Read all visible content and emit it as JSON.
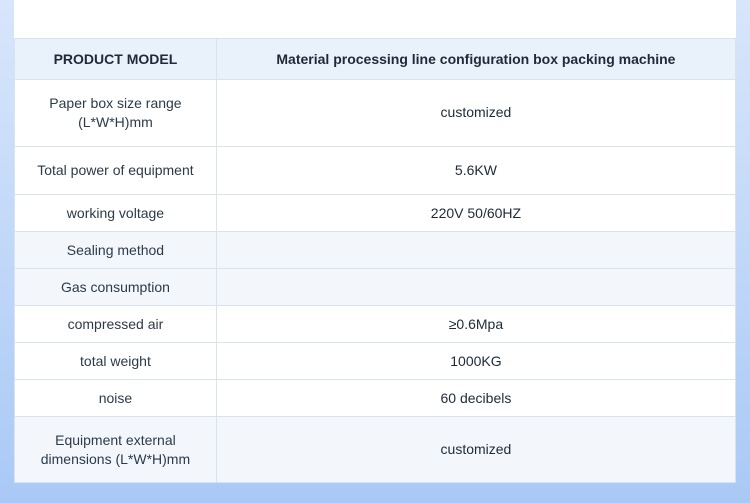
{
  "spec_table": {
    "type": "table",
    "header": {
      "label": "PRODUCT MODEL",
      "value": "Material processing line configuration box packing machine",
      "background_color": "#e9f1fb",
      "font_weight": 700,
      "fontsize": 14
    },
    "columns": [
      {
        "key": "label",
        "width_pct": 28,
        "align": "center"
      },
      {
        "key": "value",
        "width_pct": 72,
        "align": "center"
      }
    ],
    "rows": [
      {
        "label": "Paper box size range (L*W*H)mm",
        "value": "customized",
        "tall": true
      },
      {
        "label": "Total power of equipment",
        "value": "5.6KW",
        "tall": true
      },
      {
        "label": "working voltage",
        "value": "220V 50/60HZ"
      },
      {
        "label": "Sealing method",
        "value": "",
        "alt": true
      },
      {
        "label": "Gas consumption",
        "value": "",
        "alt": true
      },
      {
        "label": "compressed air",
        "value": "≥0.6Mpa"
      },
      {
        "label": "total weight",
        "value": "1000KG"
      },
      {
        "label": "noise",
        "value": "60 decibels"
      },
      {
        "label": "Equipment external dimensions (L*W*H)mm",
        "value": "customized",
        "alt": true,
        "tall": true
      }
    ],
    "border_color": "#d9e3ee",
    "row_bg": "#ffffff",
    "row_alt_bg": "#f3f7fc",
    "text_color": "#1e2a38",
    "body_fontsize": 14
  },
  "background": {
    "gradient_top": "#d8e6fb",
    "gradient_bottom": "#a9c9f5",
    "whitebar_color": "#ffffff"
  }
}
